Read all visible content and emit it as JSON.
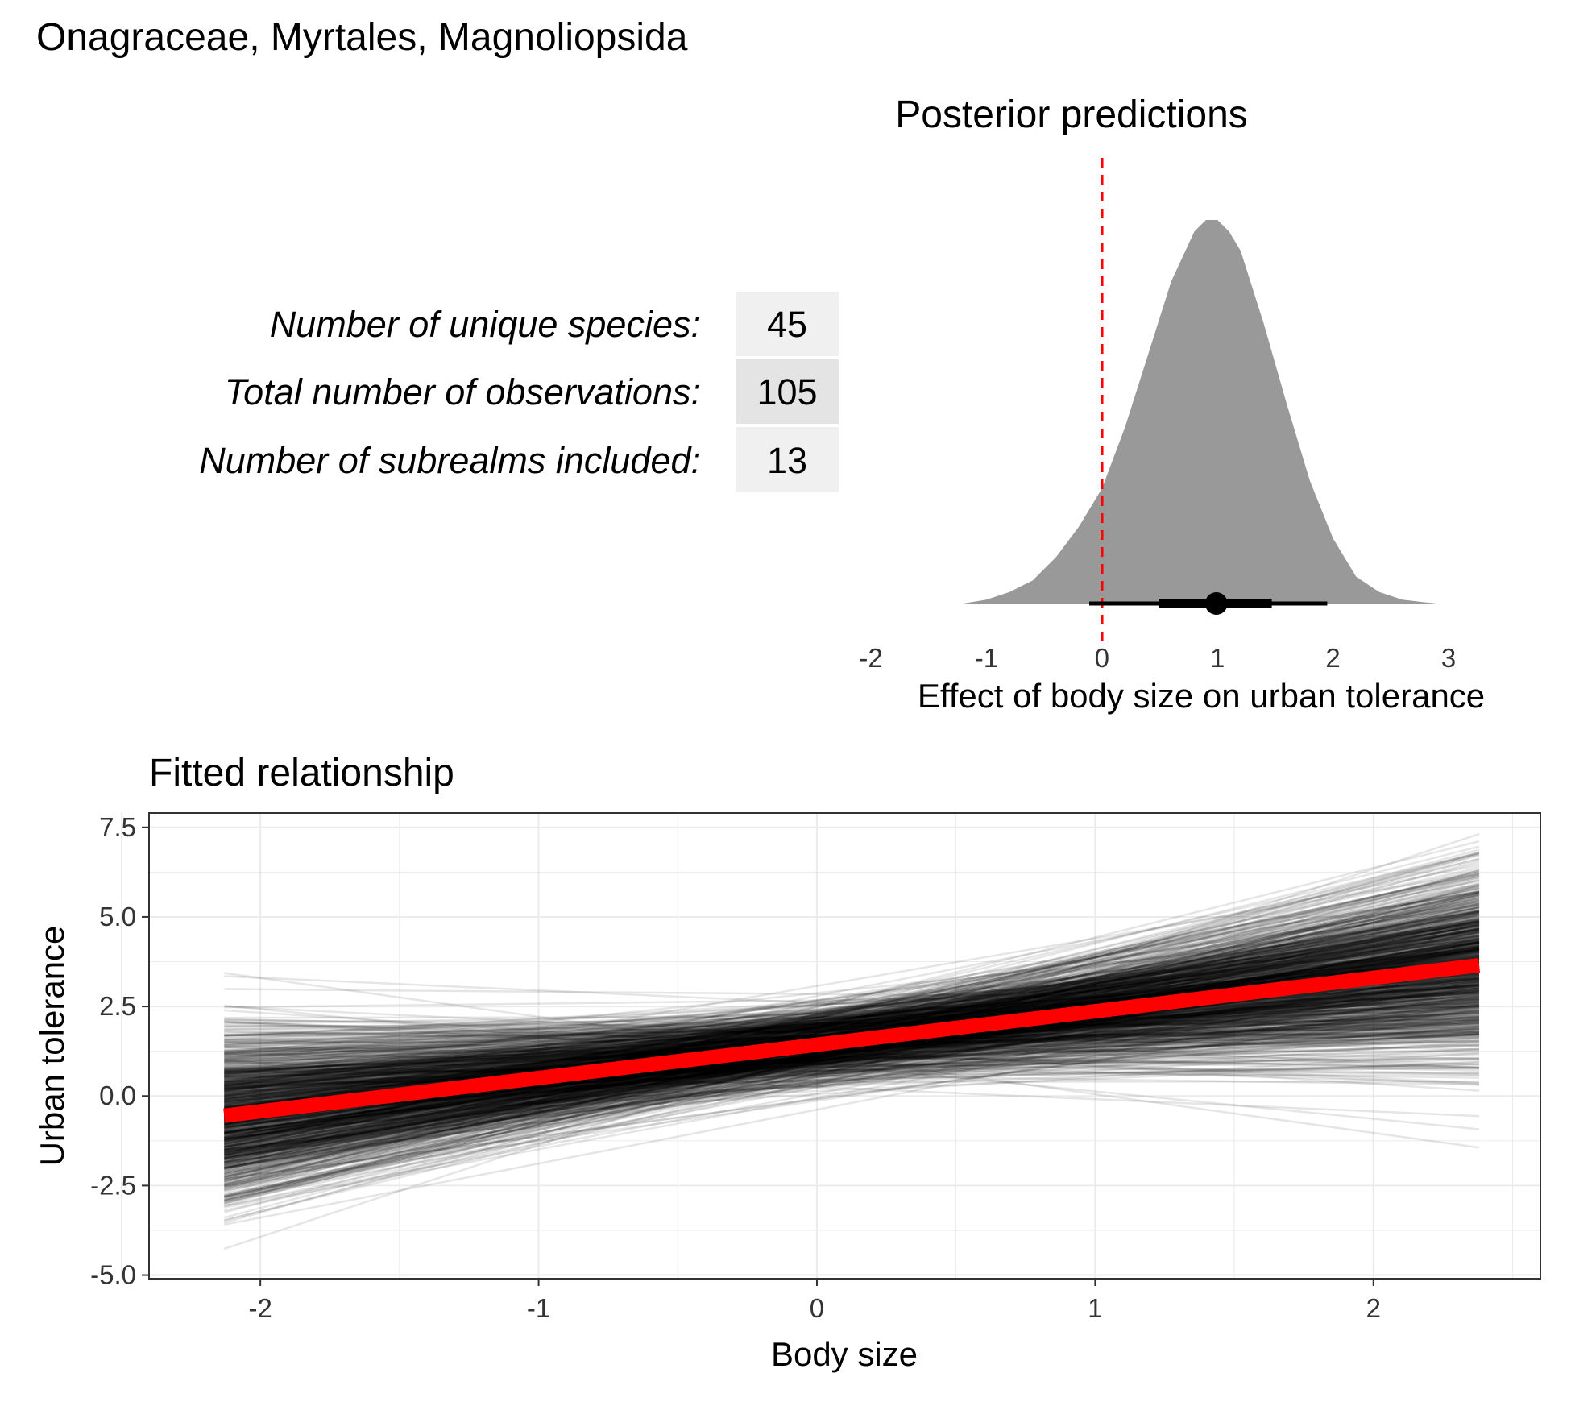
{
  "page_title": "Onagraceae, Myrtales, Magnoliopsida",
  "stats_table": {
    "rows": [
      {
        "label": "Number of unique species:",
        "value": "45"
      },
      {
        "label": "Total number of observations:",
        "value": "105"
      },
      {
        "label": "Number of subrealms included:",
        "value": "13"
      }
    ]
  },
  "colors": {
    "density_fill": "#999999",
    "reference_line": "#ff0000",
    "fit_line": "#ff0000",
    "draw_lines": "#000000",
    "table_cell_light": "#f0f0f0",
    "table_cell_dark": "#e4e4e4",
    "grid": "#ebebeb"
  },
  "chart_data": [
    {
      "type": "area",
      "title": "Posterior predictions",
      "xlabel": "Effect of body size on urban tolerance",
      "ylabel": "",
      "xlim": [
        -2,
        3
      ],
      "xticks": [
        "-2",
        "-1",
        "0",
        "1",
        "2",
        "3"
      ],
      "grid": false,
      "reference_line_x": 0,
      "density": {
        "x": [
          -1.2,
          -1.0,
          -0.8,
          -0.6,
          -0.4,
          -0.2,
          0.0,
          0.2,
          0.4,
          0.6,
          0.8,
          0.9,
          1.0,
          1.1,
          1.2,
          1.4,
          1.6,
          1.8,
          2.0,
          2.2,
          2.4,
          2.6,
          2.8,
          2.9
        ],
        "y": [
          0.0,
          0.01,
          0.03,
          0.06,
          0.12,
          0.2,
          0.3,
          0.46,
          0.65,
          0.84,
          0.97,
          1.0,
          1.0,
          0.97,
          0.92,
          0.73,
          0.52,
          0.32,
          0.17,
          0.07,
          0.03,
          0.01,
          0.003,
          0.0
        ]
      },
      "point_estimate": 0.99,
      "interval_66": [
        0.49,
        1.47
      ],
      "interval_95": [
        -0.11,
        1.95
      ]
    },
    {
      "type": "line",
      "title": "Fitted relationship",
      "xlabel": "Body size",
      "ylabel": "Urban tolerance",
      "xlim": [
        -2.4,
        2.6
      ],
      "ylim": [
        -5.1,
        7.9
      ],
      "xticks": [
        "-2",
        "-1",
        "0",
        "1",
        "2"
      ],
      "yticks": [
        "-5.0",
        "-2.5",
        "0.0",
        "2.5",
        "5.0",
        "7.5"
      ],
      "grid": true,
      "x_range": [
        -2.13,
        2.38
      ],
      "fit": {
        "x": [
          -2.13,
          2.38
        ],
        "y": [
          -0.55,
          3.65
        ]
      },
      "posterior_draws": {
        "count": 1000,
        "intercept_mean": 1.43,
        "intercept_sd": 0.52,
        "slope_mean": 0.93,
        "slope_sd": 0.5
      }
    }
  ]
}
